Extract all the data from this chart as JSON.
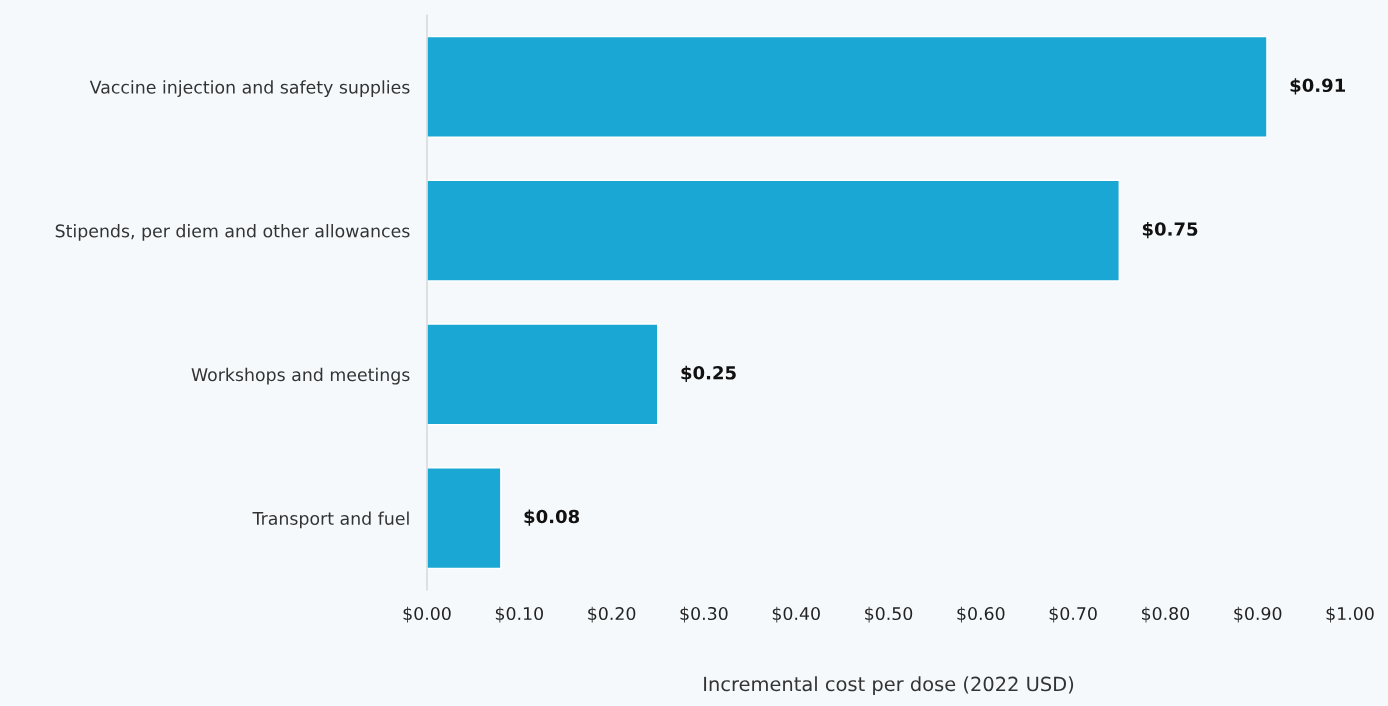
{
  "chart_data": {
    "type": "bar",
    "orientation": "horizontal",
    "xlabel": "Incremental cost per dose (2022 USD)",
    "categories": [
      "Vaccine injection and safety supplies",
      "Stipends, per diem and other allowances",
      "Workshops and meetings",
      "Transport and fuel"
    ],
    "values": [
      0.91,
      0.75,
      0.25,
      0.08
    ],
    "value_labels": [
      "$0.91",
      "$0.75",
      "$0.25",
      "$0.08"
    ],
    "color": "#1aa7d4",
    "xlim": [
      0,
      1.0
    ],
    "xticks": [
      {
        "value": 0,
        "label": "$0.00"
      },
      {
        "value": 0.1,
        "label": "$0.10"
      },
      {
        "value": 0.2,
        "label": "$0.20"
      },
      {
        "value": 0.3,
        "label": "$0.30"
      },
      {
        "value": 0.4,
        "label": "$0.40"
      },
      {
        "value": 0.5,
        "label": "$0.50"
      },
      {
        "value": 0.6,
        "label": "$0.60"
      },
      {
        "value": 0.7,
        "label": "$0.70"
      },
      {
        "value": 0.8,
        "label": "$0.80"
      },
      {
        "value": 0.9,
        "label": "$0.90"
      },
      {
        "value": 1.0,
        "label": "$1.00"
      }
    ],
    "grid": false,
    "legend": false
  }
}
